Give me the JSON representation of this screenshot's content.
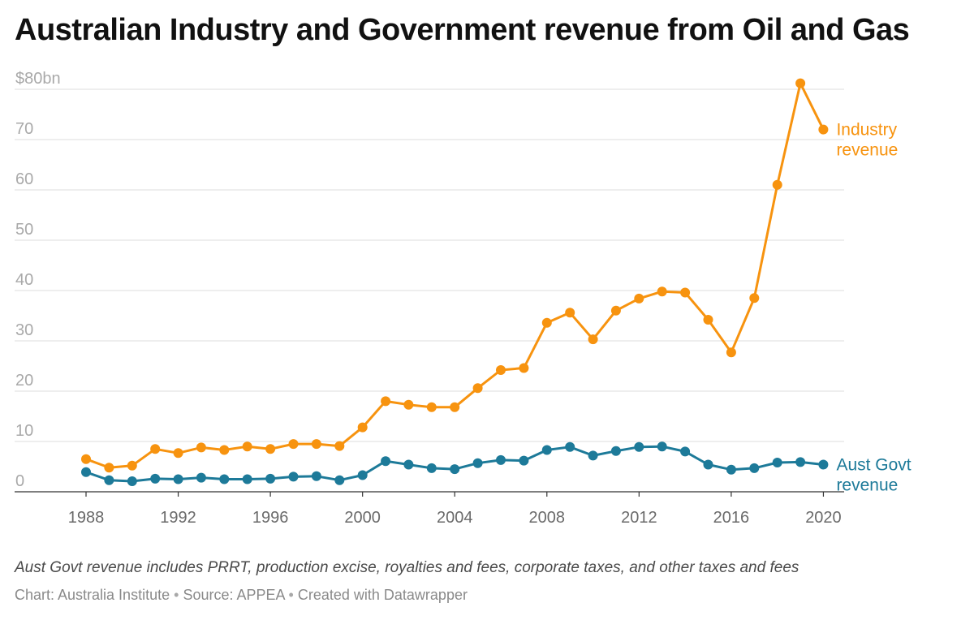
{
  "title": "Australian Industry and Government revenue from Oil and Gas",
  "note": "Aust Govt revenue includes PRRT, production excise, royalties and fees, corporate taxes, and other taxes and fees",
  "credits": {
    "chart": "Chart: Australia Institute",
    "source": "Source: APPEA",
    "created": "Created with Datawrapper",
    "separator": "•"
  },
  "colors": {
    "industry": "#f7930f",
    "govt": "#1d7a99",
    "grid": "#dedede",
    "axis": "#333333",
    "tick_text": "#a9a9a9",
    "x_tick_text": "#6a6a6a"
  },
  "chart_data": {
    "type": "line",
    "title": "Australian Industry and Government revenue from Oil and Gas",
    "xlabel": "",
    "ylabel": "",
    "x": [
      1988,
      1989,
      1990,
      1991,
      1992,
      1993,
      1994,
      1995,
      1996,
      1997,
      1998,
      1999,
      2000,
      2001,
      2002,
      2003,
      2004,
      2005,
      2006,
      2007,
      2008,
      2009,
      2010,
      2011,
      2012,
      2013,
      2014,
      2015,
      2016,
      2017,
      2018,
      2019,
      2020
    ],
    "xlim": [
      1984.9,
      2020.9
    ],
    "x_ticks": [
      1988,
      1992,
      1996,
      2000,
      2004,
      2008,
      2012,
      2016,
      2020
    ],
    "ylim": [
      0,
      80
    ],
    "y_ticks": [
      0,
      10,
      20,
      30,
      40,
      50,
      60,
      70,
      80
    ],
    "y_tick_labels": [
      "0",
      "10",
      "20",
      "30",
      "40",
      "50",
      "60",
      "70",
      "$80bn"
    ],
    "grid": true,
    "series": [
      {
        "name": "Industry revenue",
        "label_lines": [
          "Industry",
          "revenue"
        ],
        "color": "#f7930f",
        "values": [
          6.5,
          4.8,
          5.2,
          8.5,
          7.7,
          8.8,
          8.3,
          9.0,
          8.5,
          9.5,
          9.5,
          9.1,
          12.8,
          18.0,
          17.3,
          16.8,
          16.8,
          20.6,
          24.2,
          24.6,
          33.6,
          35.6,
          30.3,
          36.0,
          38.4,
          39.8,
          39.6,
          34.2,
          27.7,
          38.5,
          61.0,
          81.2,
          72.0
        ]
      },
      {
        "name": "Aust Govt revenue",
        "label_lines": [
          "Aust Govt",
          "revenue"
        ],
        "color": "#1d7a99",
        "values": [
          3.9,
          2.3,
          2.1,
          2.6,
          2.5,
          2.8,
          2.5,
          2.5,
          2.6,
          3.0,
          3.1,
          2.3,
          3.3,
          6.1,
          5.4,
          4.7,
          4.5,
          5.7,
          6.3,
          6.2,
          8.3,
          8.9,
          7.2,
          8.1,
          8.9,
          9.0,
          8.0,
          5.4,
          4.4,
          4.7,
          5.8,
          5.9,
          5.4
        ]
      }
    ]
  }
}
